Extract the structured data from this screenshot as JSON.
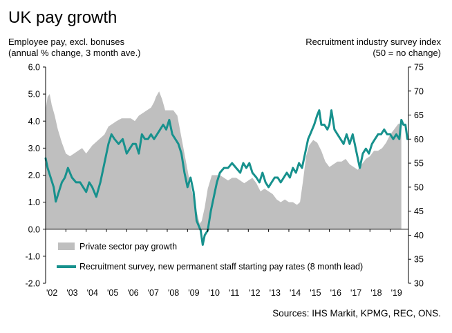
{
  "chart_data": {
    "type": "area",
    "title": "UK pay growth",
    "left_axis_title_line1": "Employee pay, excl. bonuses",
    "left_axis_title_line2": "(annual % change, 3 month ave.)",
    "right_axis_title_line1": "Recruitment industry survey index",
    "right_axis_title_line2": "(50 = no change)",
    "source": "Sources: IHS Markit, KPMG, REC, ONS.",
    "left_ylim": [
      -2.0,
      6.0
    ],
    "right_ylim": [
      30,
      75
    ],
    "left_ticks": [
      "6.0",
      "5.0",
      "4.0",
      "3.0",
      "2.0",
      "1.0",
      "0.0",
      "-1.0",
      "-2.0"
    ],
    "left_tick_values": [
      6,
      5,
      4,
      3,
      2,
      1,
      0,
      -1,
      -2
    ],
    "right_ticks": [
      "75",
      "70",
      "65",
      "60",
      "55",
      "50",
      "45",
      "40",
      "35",
      "30"
    ],
    "right_tick_values": [
      75,
      70,
      65,
      60,
      55,
      50,
      45,
      40,
      35,
      30
    ],
    "x_labels": [
      "'02",
      "'03",
      "'04",
      "'05",
      "'06",
      "'07",
      "'08",
      "'09",
      "'10",
      "'11",
      "'12",
      "'13",
      "'14",
      "'15",
      "'16",
      "'17",
      "'18",
      "'19"
    ],
    "x_label_years": [
      2002,
      2003,
      2004,
      2005,
      2006,
      2007,
      2008,
      2009,
      2010,
      2011,
      2012,
      2013,
      2014,
      2015,
      2016,
      2017,
      2018,
      2019
    ],
    "x_range": [
      2002.0,
      2019.9
    ],
    "legend": "bottom-left",
    "colors": {
      "bars": "#bfbfbf",
      "line": "#17918d",
      "axis": "#000000"
    },
    "series": [
      {
        "name": "Private sector pay growth",
        "axis": "left",
        "style": "area",
        "x": [
          2002.0,
          2002.1,
          2002.2,
          2002.3,
          2002.45,
          2002.6,
          2002.8,
          2003.0,
          2003.2,
          2003.4,
          2003.6,
          2003.8,
          2004.0,
          2004.3,
          2004.6,
          2004.9,
          2005.1,
          2005.3,
          2005.5,
          2005.75,
          2006.0,
          2006.2,
          2006.4,
          2006.6,
          2006.8,
          2007.0,
          2007.2,
          2007.35,
          2007.45,
          2007.6,
          2007.75,
          2007.9,
          2008.1,
          2008.3,
          2008.5,
          2008.65,
          2008.8,
          2008.95,
          2009.1,
          2009.25,
          2009.4,
          2009.5,
          2009.6,
          2009.7,
          2009.85,
          2010.0,
          2010.2,
          2010.4,
          2010.6,
          2010.8,
          2011.0,
          2011.2,
          2011.4,
          2011.6,
          2011.8,
          2012.0,
          2012.2,
          2012.4,
          2012.6,
          2012.8,
          2013.0,
          2013.2,
          2013.4,
          2013.6,
          2013.8,
          2014.0,
          2014.2,
          2014.4,
          2014.55,
          2014.7,
          2014.85,
          2015.0,
          2015.2,
          2015.4,
          2015.6,
          2015.8,
          2016.0,
          2016.2,
          2016.4,
          2016.6,
          2016.8,
          2017.0,
          2017.2,
          2017.4,
          2017.6,
          2017.8,
          2018.0,
          2018.2,
          2018.4,
          2018.6,
          2018.8,
          2019.0,
          2019.2,
          2019.4,
          2019.55
        ],
        "y": [
          4.4,
          4.9,
          5.0,
          4.6,
          4.2,
          3.7,
          3.2,
          2.8,
          2.7,
          2.8,
          2.9,
          3.0,
          2.8,
          3.1,
          3.3,
          3.5,
          3.8,
          3.9,
          4.0,
          4.1,
          4.1,
          4.1,
          4.0,
          4.2,
          4.3,
          4.4,
          4.5,
          4.7,
          4.9,
          5.1,
          4.8,
          4.4,
          4.4,
          4.4,
          4.2,
          3.6,
          3.0,
          2.4,
          1.8,
          1.3,
          0.8,
          0.5,
          0.2,
          0.3,
          0.8,
          1.5,
          2.0,
          2.0,
          2.0,
          1.9,
          1.8,
          1.9,
          1.9,
          1.8,
          1.7,
          1.8,
          1.9,
          1.7,
          1.4,
          1.5,
          1.4,
          1.3,
          1.1,
          1.0,
          1.1,
          1.0,
          1.0,
          0.9,
          1.0,
          1.8,
          2.7,
          3.1,
          3.3,
          3.2,
          2.9,
          2.5,
          2.3,
          2.4,
          2.5,
          2.5,
          2.6,
          2.4,
          2.3,
          2.2,
          2.4,
          2.6,
          2.7,
          2.9,
          2.9,
          3.0,
          3.2,
          3.5,
          3.7,
          3.9,
          3.9
        ]
      },
      {
        "name": "Recruitment survey, new permanent staff starting pay rates (8 month lead)",
        "axis": "right",
        "style": "line",
        "x": [
          2002.0,
          2002.1,
          2002.25,
          2002.4,
          2002.5,
          2002.65,
          2002.8,
          2002.95,
          2003.1,
          2003.3,
          2003.5,
          2003.7,
          2003.85,
          2004.0,
          2004.15,
          2004.3,
          2004.5,
          2004.7,
          2004.9,
          2005.0,
          2005.1,
          2005.25,
          2005.4,
          2005.6,
          2005.8,
          2006.0,
          2006.15,
          2006.3,
          2006.45,
          2006.6,
          2006.75,
          2006.9,
          2007.05,
          2007.2,
          2007.35,
          2007.5,
          2007.65,
          2007.8,
          2007.95,
          2008.1,
          2008.25,
          2008.4,
          2008.55,
          2008.7,
          2008.85,
          2009.0,
          2009.15,
          2009.3,
          2009.45,
          2009.55,
          2009.65,
          2009.75,
          2009.85,
          2010.0,
          2010.15,
          2010.3,
          2010.45,
          2010.6,
          2010.8,
          2011.0,
          2011.2,
          2011.4,
          2011.6,
          2011.75,
          2011.9,
          2012.05,
          2012.2,
          2012.4,
          2012.55,
          2012.7,
          2012.85,
          2013.0,
          2013.15,
          2013.3,
          2013.45,
          2013.6,
          2013.75,
          2013.9,
          2014.05,
          2014.2,
          2014.35,
          2014.5,
          2014.65,
          2014.8,
          2014.95,
          2015.05,
          2015.15,
          2015.25,
          2015.4,
          2015.5,
          2015.6,
          2015.75,
          2015.9,
          2016.0,
          2016.1,
          2016.25,
          2016.4,
          2016.55,
          2016.7,
          2016.85,
          2017.0,
          2017.15,
          2017.25,
          2017.35,
          2017.5,
          2017.65,
          2017.8,
          2017.95,
          2018.1,
          2018.25,
          2018.4,
          2018.55,
          2018.7,
          2018.85,
          2019.0,
          2019.15,
          2019.3,
          2019.45,
          2019.55,
          2019.65,
          2019.75,
          2019.85
        ],
        "y": [
          56,
          54,
          52,
          50,
          47,
          49,
          51,
          52,
          54,
          52,
          51,
          51,
          50,
          49,
          51,
          50,
          48,
          51,
          55,
          57,
          59,
          61,
          60,
          59,
          60,
          57,
          58,
          59,
          59,
          57,
          61,
          60,
          60,
          61,
          60,
          61,
          62,
          63,
          62,
          64,
          61,
          60,
          59,
          57,
          53,
          50,
          52,
          49,
          43,
          42,
          41,
          38,
          40,
          41,
          45,
          48,
          51,
          53,
          54,
          54,
          55,
          54,
          53,
          55,
          54,
          55,
          53,
          52,
          51,
          53,
          51,
          50,
          51,
          52,
          52,
          51,
          52,
          53,
          52,
          54,
          53,
          55,
          54,
          57,
          60,
          61,
          62,
          63,
          65,
          66,
          63,
          63,
          62,
          63,
          66,
          62,
          61,
          60,
          59,
          61,
          59,
          61,
          59,
          57,
          54,
          57,
          58,
          57,
          59,
          60,
          61,
          61,
          62,
          61,
          61,
          60,
          61,
          60,
          64,
          63,
          63,
          60
        ]
      }
    ]
  }
}
